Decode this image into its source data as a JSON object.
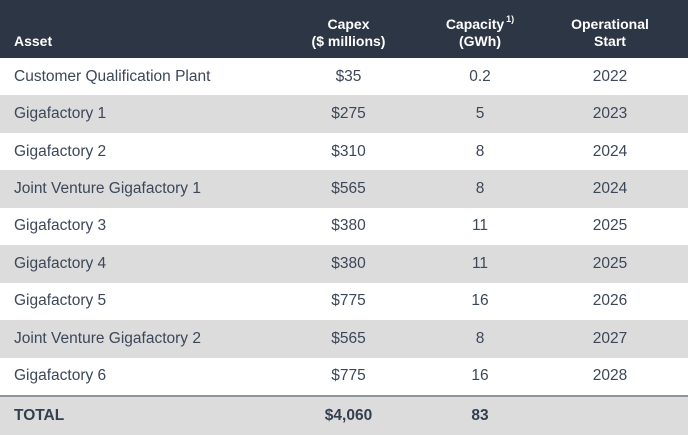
{
  "header": {
    "asset": "Asset",
    "capex": {
      "line1": "Capex",
      "line2": "($ millions)"
    },
    "capacity": {
      "line1": "Capacity",
      "sup": "1)",
      "line2": "(GWh)"
    },
    "operational": {
      "line1": "Operational",
      "line2": "Start"
    }
  },
  "table": {
    "rows": [
      {
        "asset": "Customer Qualification Plant",
        "capex": "$35",
        "capacity": "0.2",
        "start": "2022"
      },
      {
        "asset": "Gigafactory 1",
        "capex": "$275",
        "capacity": "5",
        "start": "2023"
      },
      {
        "asset": "Gigafactory 2",
        "capex": "$310",
        "capacity": "8",
        "start": "2024"
      },
      {
        "asset": "Joint Venture Gigafactory 1",
        "capex": "$565",
        "capacity": "8",
        "start": "2024"
      },
      {
        "asset": "Gigafactory 3",
        "capex": "$380",
        "capacity": "11",
        "start": "2025"
      },
      {
        "asset": "Gigafactory 4",
        "capex": "$380",
        "capacity": "11",
        "start": "2025"
      },
      {
        "asset": "Gigafactory 5",
        "capex": "$775",
        "capacity": "16",
        "start": "2026"
      },
      {
        "asset": "Joint Venture Gigafactory 2",
        "capex": "$565",
        "capacity": "8",
        "start": "2027"
      },
      {
        "asset": "Gigafactory 6",
        "capex": "$775",
        "capacity": "16",
        "start": "2028"
      }
    ],
    "total": {
      "label": "TOTAL",
      "capex": "$4,060",
      "capacity": "83",
      "start": ""
    }
  },
  "colors": {
    "header_bg": "#2d3644",
    "header_text": "#ffffff",
    "row_text": "#3c4759",
    "stripe": "#dcdcdc",
    "total_border": "#8e959d"
  },
  "chart_data": {
    "type": "table",
    "title": "",
    "columns": [
      "Asset",
      "Capex ($ millions)",
      "Capacity (GWh)",
      "Operational Start"
    ],
    "rows": [
      [
        "Customer Qualification Plant",
        35,
        0.2,
        2022
      ],
      [
        "Gigafactory 1",
        275,
        5,
        2023
      ],
      [
        "Gigafactory 2",
        310,
        8,
        2024
      ],
      [
        "Joint Venture Gigafactory 1",
        565,
        8,
        2024
      ],
      [
        "Gigafactory 3",
        380,
        11,
        2025
      ],
      [
        "Gigafactory 4",
        380,
        11,
        2025
      ],
      [
        "Gigafactory 5",
        775,
        16,
        2026
      ],
      [
        "Joint Venture Gigafactory 2",
        565,
        8,
        2027
      ],
      [
        "Gigafactory 6",
        775,
        16,
        2028
      ]
    ],
    "total_row": [
      "TOTAL",
      4060,
      83,
      null
    ],
    "footnote_marker": "1)"
  }
}
